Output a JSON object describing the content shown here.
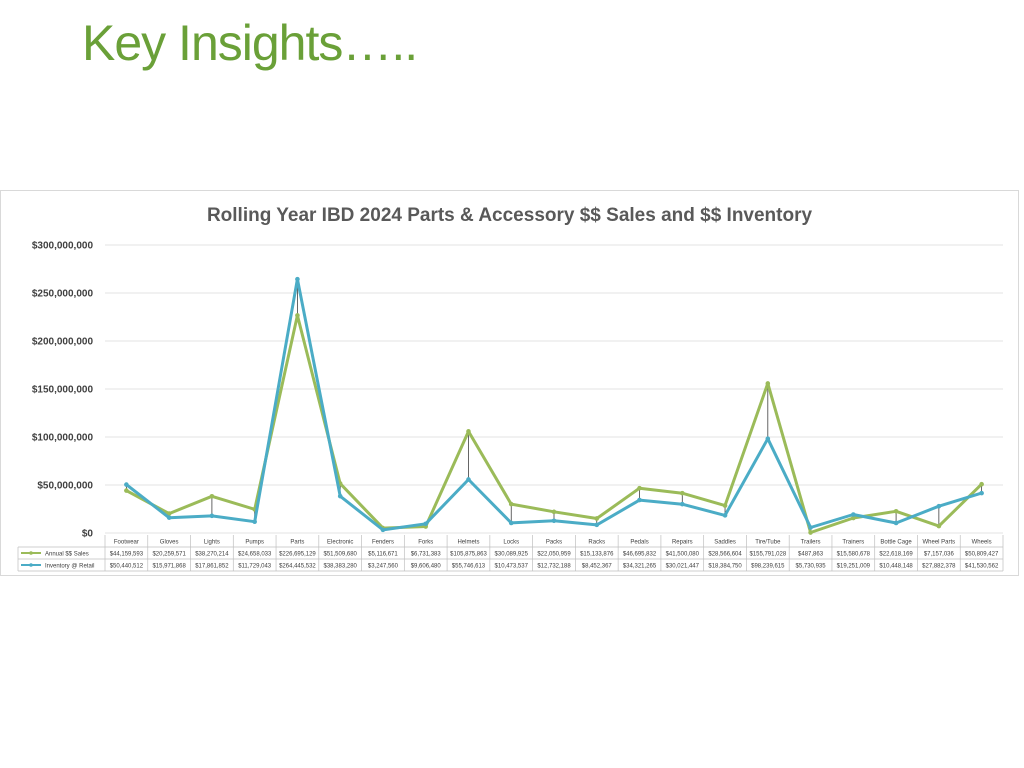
{
  "page": {
    "title": "Key Insights….."
  },
  "colors": {
    "sales": "#9bbb59",
    "inventory": "#4bacc6",
    "title_green": "#6aa038"
  },
  "chart_data": {
    "type": "line",
    "title": "Rolling Year IBD 2024 Parts & Accessory $$ Sales and $$ Inventory",
    "y_ticks": [
      "$0",
      "$50,000,000",
      "$100,000,000",
      "$150,000,000",
      "$200,000,000",
      "$250,000,000",
      "$300,000,000"
    ],
    "ylim": [
      0,
      300000000
    ],
    "grid": true,
    "legend": "data-table",
    "categories": [
      "Footwear",
      "Gloves",
      "Lights",
      "Pumps",
      "Parts",
      "Electronic",
      "Fenders",
      "Forks",
      "Helmets",
      "Locks",
      "Packs",
      "Racks",
      "Pedals",
      "Repairs",
      "Saddles",
      "Tire/Tube",
      "Trailers",
      "Trainers",
      "Bottle Cage",
      "Wheel Parts",
      "Wheels"
    ],
    "series": [
      {
        "name": "Annual $$ Sales",
        "color": "#9bbb59",
        "values": [
          44159593,
          20259571,
          38270214,
          24658033,
          226695129,
          51509680,
          5116671,
          6731383,
          105875863,
          30089925,
          22050959,
          15133876,
          46695832,
          41500080,
          28566604,
          155791028,
          487863,
          15580678,
          22618169,
          7157036,
          50809427
        ],
        "labels": [
          "$44,159,593",
          "$20,259,571",
          "$38,270,214",
          "$24,658,033",
          "$226,695,129",
          "$51,509,680",
          "$5,116,671",
          "$6,731,383",
          "$105,875,863",
          "$30,089,925",
          "$22,050,959",
          "$15,133,876",
          "$46,695,832",
          "$41,500,080",
          "$28,566,604",
          "$155,791,028",
          "$487,863",
          "$15,580,678",
          "$22,618,169",
          "$7,157,036",
          "$50,809,427"
        ]
      },
      {
        "name": "Inventory @ Retail",
        "color": "#4bacc6",
        "values": [
          50440512,
          15971868,
          17861852,
          11729043,
          264445532,
          38383280,
          3247560,
          9606480,
          55746613,
          10473537,
          12732188,
          8452367,
          34321265,
          30021447,
          18384750,
          98239615,
          5730935,
          19251009,
          10448148,
          27882378,
          41530562
        ],
        "labels": [
          "$50,440,512",
          "$15,971,868",
          "$17,861,852",
          "$11,729,043",
          "$264,445,532",
          "$38,383,280",
          "$3,247,560",
          "$9,606,480",
          "$55,746,613",
          "$10,473,537",
          "$12,732,188",
          "$8,452,367",
          "$34,321,265",
          "$30,021,447",
          "$18,384,750",
          "$98,239,615",
          "$5,730,935",
          "$19,251,009",
          "$10,448,148",
          "$27,882,378",
          "$41,530,562"
        ]
      }
    ]
  }
}
